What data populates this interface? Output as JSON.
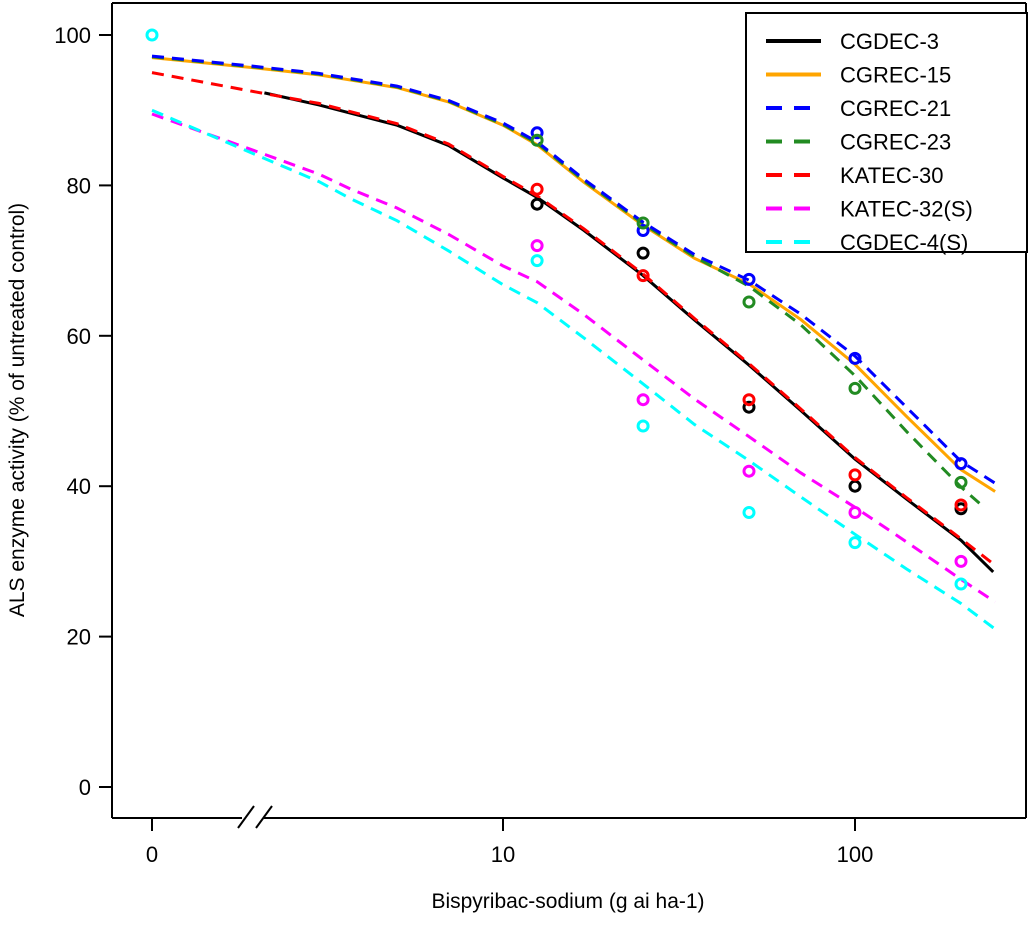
{
  "chart_data": {
    "type": "line",
    "title": "",
    "xlabel": "Bispyribac-sodium (g ai ha-1)",
    "ylabel": "ALS enzyme activity (% of untreated control)",
    "x_scale": "log10-with-axis-break-after-zero",
    "x_axis_break": true,
    "x_ticks": [
      {
        "label": "0",
        "dose": 0
      },
      {
        "label": "10",
        "dose": 10
      },
      {
        "label": "100",
        "dose": 100
      }
    ],
    "y_ticks": [
      "0",
      "20",
      "40",
      "60",
      "80",
      "100"
    ],
    "y_tick_values": [
      0,
      20,
      40,
      60,
      80,
      100
    ],
    "ylim": [
      0,
      100
    ],
    "xlim_log_part": [
      2,
      250
    ],
    "doses_tested": [
      0,
      12.5,
      25,
      50,
      100,
      200
    ],
    "grid": false,
    "legend_position": "top-right",
    "series": [
      {
        "name": "CGDEC-3",
        "color": "#000000",
        "style": "solid",
        "marker": "open-circle",
        "curve": [
          [
            2.1,
            92.3
          ],
          [
            3,
            90.7
          ],
          [
            5,
            88.0
          ],
          [
            7,
            85.3
          ],
          [
            10,
            81.0
          ],
          [
            12.5,
            78.4
          ],
          [
            17,
            74.0
          ],
          [
            25,
            68.0
          ],
          [
            35,
            62.1
          ],
          [
            50,
            56.1
          ],
          [
            70,
            50.1
          ],
          [
            100,
            43.6
          ],
          [
            140,
            38.3
          ],
          [
            200,
            32.8
          ],
          [
            247,
            28.6
          ]
        ],
        "points": [
          [
            12.5,
            77.5
          ],
          [
            25,
            71
          ],
          [
            50,
            50.5
          ],
          [
            100,
            40
          ],
          [
            200,
            37
          ]
        ]
      },
      {
        "name": "CGREC-15",
        "color": "#FFA500",
        "style": "solid",
        "marker": "none-visible",
        "curve": [
          [
            0,
            97.0
          ],
          [
            2,
            95.6
          ],
          [
            3,
            94.7
          ],
          [
            5,
            93.0
          ],
          [
            7,
            91.1
          ],
          [
            10,
            88.0
          ],
          [
            12.5,
            85.4
          ],
          [
            17,
            80.4
          ],
          [
            25,
            74.7
          ],
          [
            35,
            70.3
          ],
          [
            50,
            66.9
          ],
          [
            70,
            62.2
          ],
          [
            100,
            56.2
          ],
          [
            140,
            49.3
          ],
          [
            200,
            42.2
          ],
          [
            250,
            39.3
          ]
        ],
        "points": []
      },
      {
        "name": "CGREC-21",
        "color": "#0000FF",
        "style": "dashed",
        "marker": "open-circle",
        "curve": [
          [
            0,
            97.2
          ],
          [
            2,
            95.8
          ],
          [
            3,
            94.9
          ],
          [
            5,
            93.2
          ],
          [
            7,
            91.3
          ],
          [
            10,
            88.3
          ],
          [
            12.5,
            85.8
          ],
          [
            17,
            80.8
          ],
          [
            25,
            75.1
          ],
          [
            35,
            70.8
          ],
          [
            50,
            67.4
          ],
          [
            70,
            62.9
          ],
          [
            100,
            57.3
          ],
          [
            140,
            50.5
          ],
          [
            200,
            43.3
          ],
          [
            250,
            40.4
          ]
        ],
        "points": [
          [
            12.5,
            87
          ],
          [
            25,
            74
          ],
          [
            50,
            67.5
          ],
          [
            100,
            57
          ],
          [
            200,
            43
          ]
        ]
      },
      {
        "name": "CGREC-23",
        "color": "#228B22",
        "style": "dashed",
        "marker": "open-circle",
        "curve": [
          [
            0,
            97.1
          ],
          [
            2,
            95.7
          ],
          [
            3,
            94.8
          ],
          [
            5,
            93.1
          ],
          [
            7,
            91.2
          ],
          [
            10,
            88.1
          ],
          [
            12.5,
            85.6
          ],
          [
            17,
            80.6
          ],
          [
            25,
            74.9
          ],
          [
            35,
            70.5
          ],
          [
            50,
            66.6
          ],
          [
            70,
            61.5
          ],
          [
            100,
            54.7
          ],
          [
            140,
            47.3
          ],
          [
            200,
            39.9
          ],
          [
            230,
            37.4
          ]
        ],
        "points": [
          [
            12.5,
            86
          ],
          [
            25,
            75
          ],
          [
            50,
            64.5
          ],
          [
            100,
            53
          ],
          [
            200,
            40.5
          ]
        ]
      },
      {
        "name": "KATEC-30",
        "color": "#FF0000",
        "style": "dashed",
        "marker": "open-circle",
        "curve": [
          [
            0,
            95.0
          ],
          [
            2,
            92.4
          ],
          [
            3,
            90.9
          ],
          [
            5,
            88.2
          ],
          [
            7,
            85.5
          ],
          [
            10,
            81.2
          ],
          [
            12.5,
            78.6
          ],
          [
            17,
            74.2
          ],
          [
            25,
            68.2
          ],
          [
            35,
            62.3
          ],
          [
            50,
            56.3
          ],
          [
            70,
            50.3
          ],
          [
            100,
            43.8
          ],
          [
            140,
            38.5
          ],
          [
            200,
            33.0
          ],
          [
            245,
            29.8
          ]
        ],
        "points": [
          [
            12.5,
            79.5
          ],
          [
            25,
            68
          ],
          [
            50,
            51.5
          ],
          [
            100,
            41.5
          ],
          [
            200,
            37.5
          ]
        ]
      },
      {
        "name": "KATEC-32(S)",
        "color": "#FF00FF",
        "style": "dashed",
        "marker": "open-circle",
        "curve": [
          [
            0,
            89.5
          ],
          [
            2,
            84.5
          ],
          [
            3,
            81.5
          ],
          [
            3.7,
            79.5
          ],
          [
            5,
            77.0
          ],
          [
            7,
            73.5
          ],
          [
            10,
            69.3
          ],
          [
            12.5,
            67.2
          ],
          [
            17,
            62.8
          ],
          [
            25,
            56.8
          ],
          [
            35,
            51.6
          ],
          [
            50,
            46.6
          ],
          [
            70,
            41.8
          ],
          [
            100,
            37.2
          ],
          [
            140,
            32.6
          ],
          [
            200,
            27.6
          ],
          [
            250,
            24.6
          ]
        ],
        "points": [
          [
            12.5,
            72
          ],
          [
            25,
            51.5
          ],
          [
            50,
            42
          ],
          [
            100,
            36.5
          ],
          [
            200,
            30
          ]
        ]
      },
      {
        "name": "CGDEC-4(S)",
        "color": "#00FFFF",
        "style": "dashed",
        "marker": "open-circle",
        "curve": [
          [
            0,
            90.0
          ],
          [
            2,
            84.0
          ],
          [
            3,
            80.5
          ],
          [
            3.7,
            78.2
          ],
          [
            5,
            75.3
          ],
          [
            7,
            71.3
          ],
          [
            10,
            66.8
          ],
          [
            12.5,
            64.4
          ],
          [
            17,
            59.7
          ],
          [
            25,
            53.6
          ],
          [
            35,
            48.2
          ],
          [
            50,
            43.4
          ],
          [
            70,
            38.6
          ],
          [
            100,
            33.6
          ],
          [
            140,
            29.0
          ],
          [
            200,
            24.4
          ],
          [
            250,
            21.0
          ]
        ],
        "points": [
          [
            0,
            100
          ],
          [
            12.5,
            70
          ],
          [
            25,
            48
          ],
          [
            50,
            36.5
          ],
          [
            100,
            32.5
          ],
          [
            200,
            27
          ]
        ]
      }
    ]
  }
}
